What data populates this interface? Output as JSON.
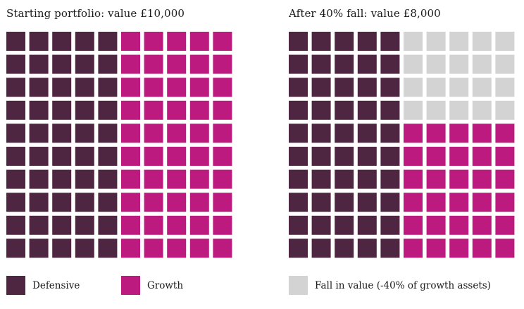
{
  "colors": {
    "defensive": "#4f2642",
    "growth": "#bd1a7f",
    "fall": "#d3d3d3"
  },
  "legend": {
    "defensive": "Defensive",
    "growth": "Growth",
    "fall": "Fall in value (-40% of growth assets)"
  },
  "chart_data": [
    {
      "type": "waffle",
      "title": "Starting portfolio: value £10,000",
      "grid": {
        "rows": 10,
        "cols": 10,
        "fill_order": "column-major"
      },
      "units": [
        {
          "series": "Defensive",
          "count": 50
        },
        {
          "series": "Growth",
          "count": 50
        }
      ]
    },
    {
      "type": "waffle",
      "title": "After 40% fall:  value £8,000",
      "grid": {
        "rows": 10,
        "cols": 10,
        "fill_order": "column-major, top rows of growth columns shown as fall"
      },
      "units": [
        {
          "series": "Defensive",
          "count": 50
        },
        {
          "series": "Fall in value (-40% of growth assets)",
          "count": 20
        },
        {
          "series": "Growth",
          "count": 30
        }
      ]
    }
  ]
}
